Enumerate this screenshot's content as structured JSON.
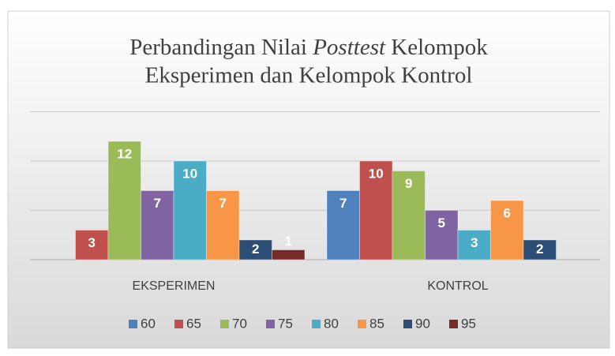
{
  "chart_data": {
    "type": "bar",
    "title": {
      "line1": [
        "Perbandingan Nilai",
        "Posttest",
        "Kelompok"
      ],
      "line2": "Eksperimen dan Kelompok Kontrol"
    },
    "categories": [
      "EKSPERIMEN",
      "KONTROL"
    ],
    "series": [
      {
        "name": "60",
        "color": "#4f81bd",
        "values": [
          null,
          7
        ]
      },
      {
        "name": "65",
        "color": "#c0504d",
        "values": [
          3,
          10
        ]
      },
      {
        "name": "70",
        "color": "#9bbb59",
        "values": [
          12,
          9
        ]
      },
      {
        "name": "75",
        "color": "#8064a2",
        "values": [
          7,
          5
        ]
      },
      {
        "name": "80",
        "color": "#4bacc6",
        "values": [
          10,
          3
        ]
      },
      {
        "name": "85",
        "color": "#f79646",
        "values": [
          7,
          6
        ]
      },
      {
        "name": "90",
        "color": "#2c4d75",
        "values": [
          2,
          2
        ]
      },
      {
        "name": "95",
        "color": "#772c2a",
        "values": [
          1,
          null
        ]
      }
    ],
    "ylim": [
      0,
      15
    ],
    "yticks": [
      0,
      5,
      10,
      15
    ],
    "grid": true,
    "legend": "bottom"
  }
}
